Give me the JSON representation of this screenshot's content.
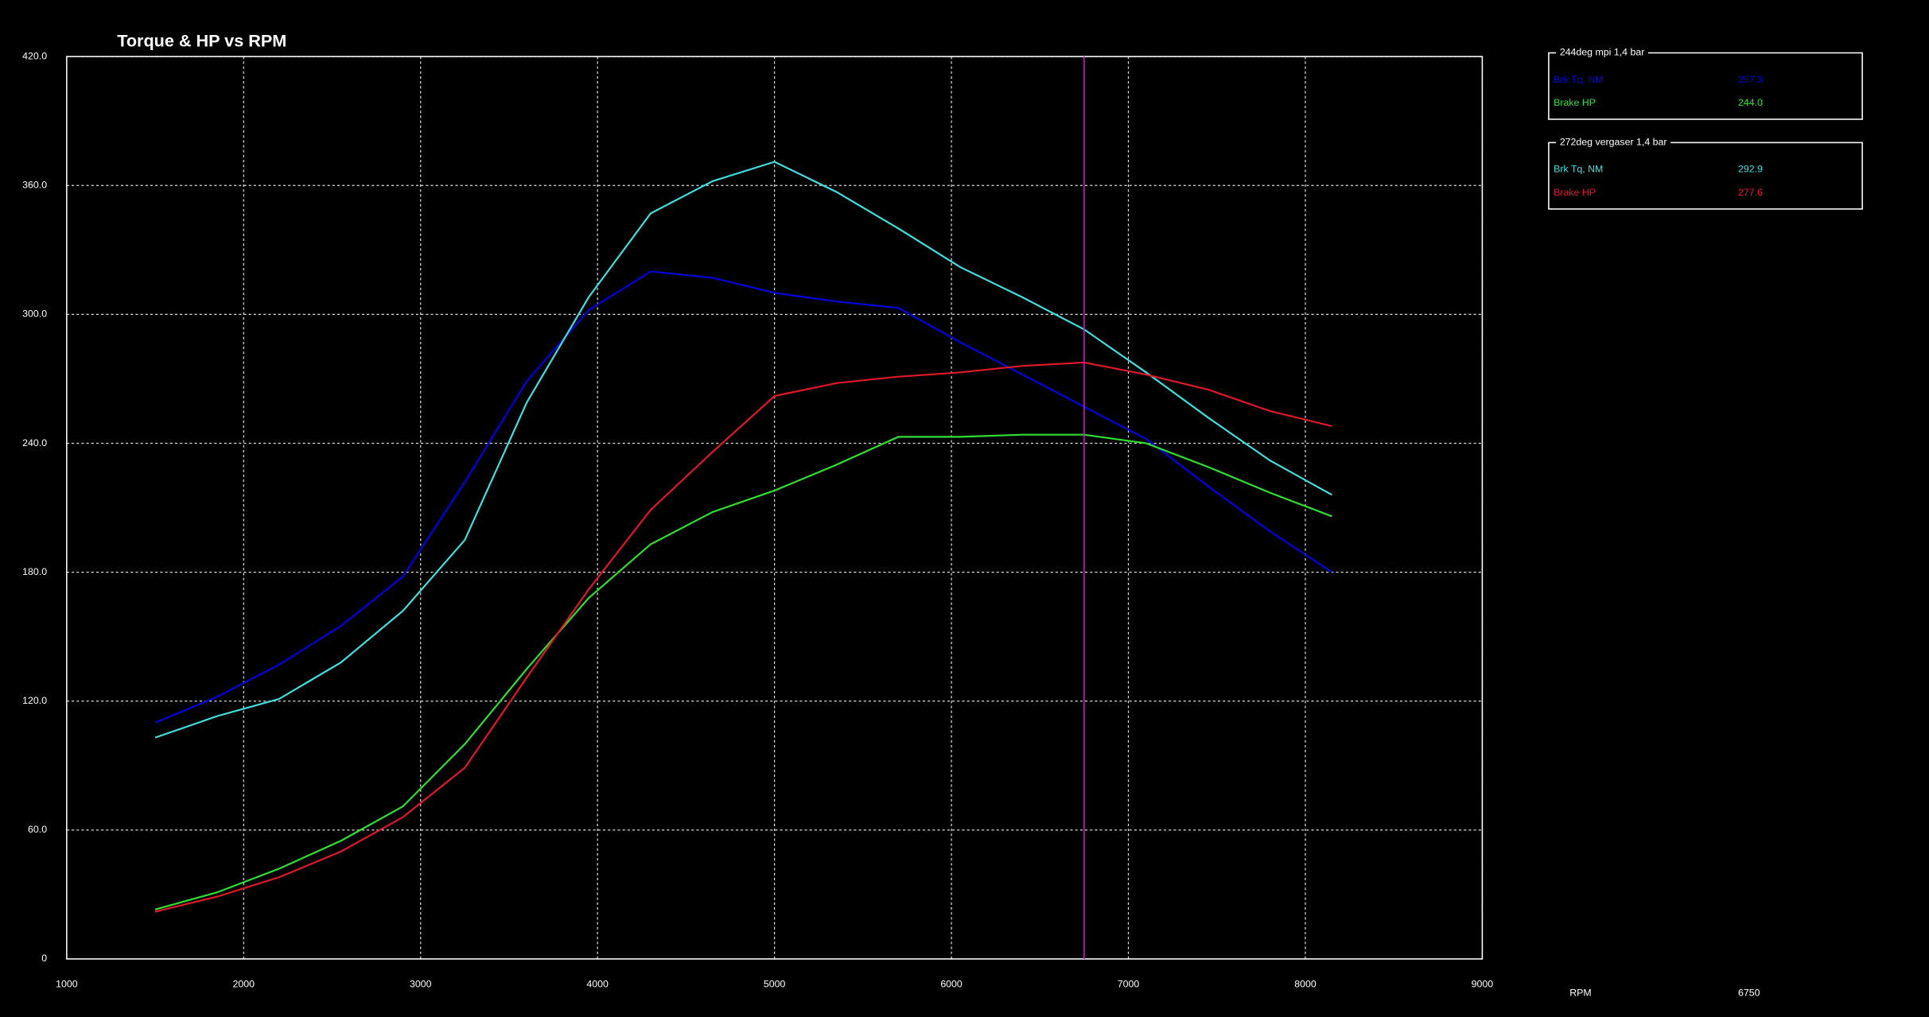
{
  "chart_data": {
    "type": "line",
    "title": "Torque & HP vs RPM",
    "x": [
      1500,
      1850,
      2200,
      2550,
      2900,
      3250,
      3600,
      3950,
      4300,
      4650,
      5000,
      5350,
      5700,
      6050,
      6400,
      6750,
      7100,
      7450,
      7800,
      8150
    ],
    "xlim": [
      1000,
      9000
    ],
    "xticks": [
      1000,
      2000,
      3000,
      4000,
      5000,
      6000,
      7000,
      8000,
      9000
    ],
    "ylim": [
      0,
      420
    ],
    "yticks": [
      0,
      {
        "value": 60,
        "label": "60.0"
      },
      {
        "value": 120,
        "label": "120.0"
      },
      {
        "value": 180,
        "label": "180.0"
      },
      {
        "value": 240,
        "label": "240.0"
      },
      {
        "value": 300,
        "label": "300.0"
      },
      {
        "value": 360,
        "label": "360.0"
      },
      {
        "value": 420,
        "label": "420.0"
      }
    ],
    "grid": true,
    "cursor": {
      "label": "RPM",
      "x": 6750,
      "color": "#c020c0"
    },
    "groups": [
      {
        "title": "244deg mpi 1,4 bar",
        "series": [
          {
            "name": "Brk Tq, NM",
            "color": "#0000e0",
            "readout": 257.3,
            "values": [
              110,
              122,
              137,
              155,
              178,
              222,
              269,
              302,
              320,
              317,
              310,
              306,
              303,
              287,
              272,
              257,
              242,
              220,
              199,
              180
            ]
          },
          {
            "name": "Brake HP",
            "color": "#30e030",
            "readout": {
              "value": 244,
              "label": "244.0"
            },
            "values": [
              23,
              31,
              42,
              55,
              71,
              100,
              135,
              168,
              193,
              208,
              218,
              230,
              243,
              243,
              244,
              244,
              240,
              229,
              217,
              206
            ]
          }
        ]
      },
      {
        "title": "272deg vergaser 1,4 bar",
        "series": [
          {
            "name": "Brk Tq, NM",
            "color": "#40e0e0",
            "readout": 292.9,
            "values": [
              103,
              113,
              121,
              138,
              162,
              195,
              259,
              308,
              347,
              362,
              371,
              357,
              340,
              322,
              308,
              293,
              273,
              252,
              232,
              216
            ]
          },
          {
            "name": "Brake HP",
            "color": "#e01828",
            "readout": 277.6,
            "values": [
              22,
              29,
              38,
              50,
              66,
              89,
              131,
              172,
              209,
              236,
              262,
              268,
              271,
              273,
              276,
              277.6,
              272,
              265,
              255,
              248
            ]
          }
        ]
      }
    ]
  }
}
